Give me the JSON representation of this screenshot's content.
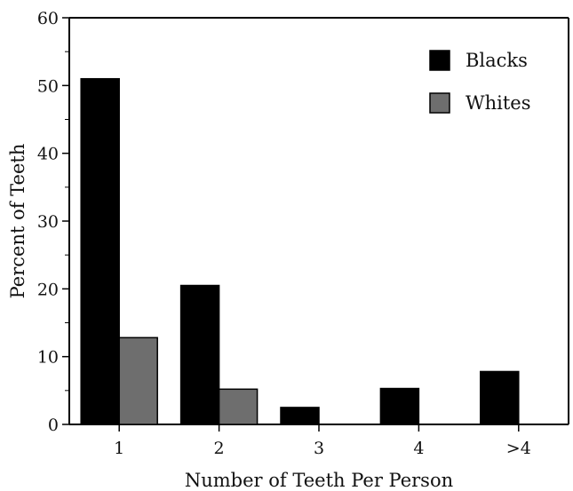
{
  "chart_data": {
    "type": "bar",
    "categories": [
      "1",
      "2",
      "3",
      "4",
      ">4"
    ],
    "series": [
      {
        "name": "Blacks",
        "values": [
          51,
          20.5,
          2.5,
          5.3,
          7.8
        ]
      },
      {
        "name": "Whites",
        "values": [
          12.8,
          5.2,
          0,
          0,
          0
        ]
      }
    ],
    "title": "",
    "xlabel": "Number of Teeth Per Person",
    "ylabel": "Percent of Teeth",
    "ylim": [
      0,
      60
    ],
    "yticks": [
      0,
      10,
      20,
      30,
      40,
      50,
      60
    ],
    "grid": false,
    "legend_position": "top-right",
    "colors": {
      "Blacks": "#000000",
      "Whites": "#6e6e6e"
    }
  }
}
